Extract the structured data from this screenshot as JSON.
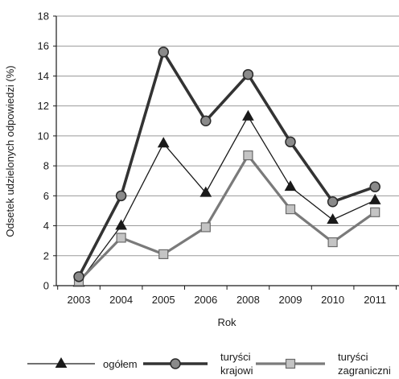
{
  "chart_data": {
    "type": "line",
    "title": "",
    "xlabel": "Rok",
    "ylabel": "Odsetek udzielonych odpowiedzi (%)",
    "categories": [
      "2003",
      "2004",
      "2005",
      "2006",
      "2008",
      "2009",
      "2010",
      "2011"
    ],
    "ylim": [
      0,
      18
    ],
    "yticks": [
      0,
      2,
      4,
      6,
      8,
      10,
      12,
      14,
      16,
      18
    ],
    "grid": "horizontal",
    "legend_position": "bottom",
    "series": [
      {
        "name": "ogółem",
        "marker": "triangle",
        "color": "#1a1a1a",
        "values": [
          0.2,
          4.0,
          9.5,
          6.2,
          11.3,
          6.6,
          4.4,
          5.7
        ]
      },
      {
        "name": "turyści krajowi",
        "marker": "circle",
        "color": "#333333",
        "values": [
          0.6,
          6.0,
          15.6,
          11.0,
          14.1,
          9.6,
          5.6,
          6.6
        ]
      },
      {
        "name": "turyści zagraniczni",
        "marker": "square",
        "color": "#7a7a7a",
        "values": [
          0.3,
          3.2,
          2.1,
          3.9,
          8.7,
          5.1,
          2.9,
          4.9
        ]
      }
    ],
    "legend": [
      {
        "series": 0,
        "label_lines": [
          "ogółem"
        ]
      },
      {
        "series": 1,
        "label_lines": [
          "turyści",
          "krajowi"
        ]
      },
      {
        "series": 2,
        "label_lines": [
          "turyści",
          "zagraniczni"
        ]
      }
    ]
  }
}
